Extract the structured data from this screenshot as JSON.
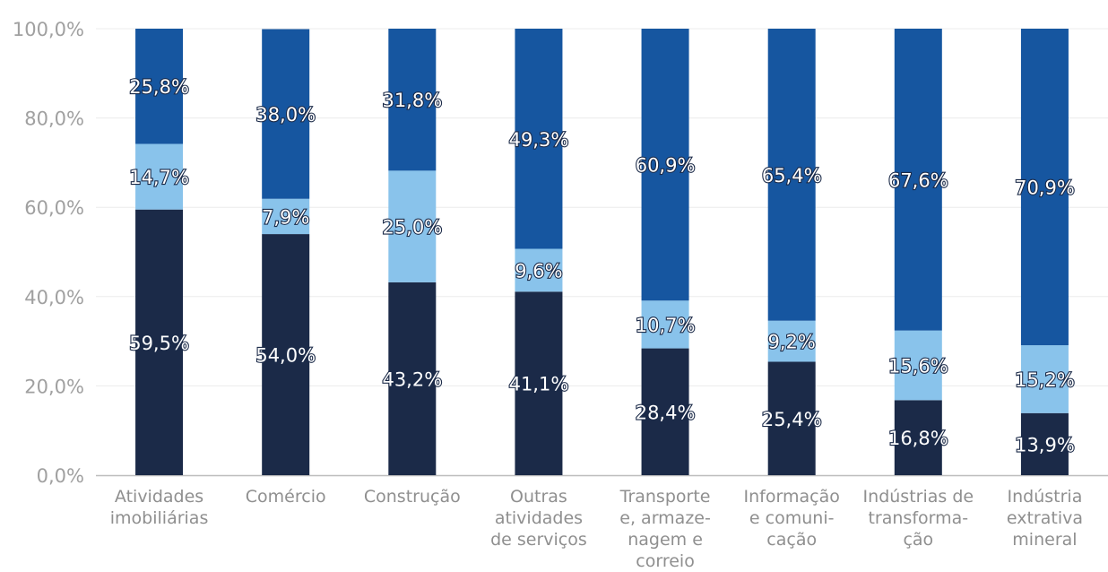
{
  "chart_data": {
    "type": "bar",
    "stacked": true,
    "categories": [
      [
        "Atividades",
        "imobiliárias"
      ],
      [
        "Comércio"
      ],
      [
        "Construção"
      ],
      [
        "Outras",
        "atividades",
        "de serviços"
      ],
      [
        "Transporte",
        "e, armaze-",
        "nagem e",
        "correio"
      ],
      [
        "Informação",
        "e comuni-",
        "cação"
      ],
      [
        "Indústrias de",
        "transforma-",
        "ção"
      ],
      [
        "Indústria",
        "extrativa",
        "mineral"
      ]
    ],
    "series": [
      {
        "values": [
          59.5,
          54.0,
          43.2,
          41.1,
          28.4,
          25.4,
          16.8,
          13.9
        ],
        "labels": [
          "59,5%",
          "54,0%",
          "43,2%",
          "41,1%",
          "28,4%",
          "25,4%",
          "16,8%",
          "13,9%"
        ],
        "color": "#1b2a48"
      },
      {
        "values": [
          14.7,
          7.9,
          25.0,
          9.6,
          10.7,
          9.2,
          15.6,
          15.2
        ],
        "labels": [
          "14,7%",
          "7,9%",
          "25,0%",
          "9,6%",
          "10,7%",
          "9,2%",
          "15,6%",
          "15,2%"
        ],
        "color": "#89c3eb"
      },
      {
        "values": [
          25.8,
          38.0,
          31.8,
          49.3,
          60.9,
          65.4,
          67.6,
          70.9
        ],
        "labels": [
          "25,8%",
          "38,0%",
          "31,8%",
          "49,3%",
          "60,9%",
          "65,4%",
          "67,6%",
          "70,9%"
        ],
        "color": "#1656a0"
      }
    ],
    "yticks": [
      "0,0%",
      "20,0%",
      "40,0%",
      "60,0%",
      "80,0%",
      "100,0%"
    ],
    "ylim": [
      0,
      100
    ],
    "grid": true,
    "title": "",
    "xlabel": "",
    "ylabel": ""
  }
}
